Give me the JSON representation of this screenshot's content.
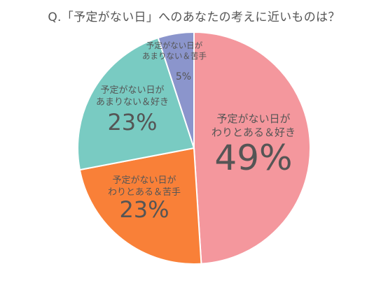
{
  "chart_data": {
    "type": "pie",
    "title": "Q.「予定がない日」へのあなたの考えに近いものは？",
    "slices": [
      {
        "label_lines": [
          "予定がない日が",
          "わりとある＆好き"
        ],
        "value": 49,
        "value_label": "49%",
        "color": "#F4979D"
      },
      {
        "label_lines": [
          "予定がない日が",
          "わりとある＆苦手"
        ],
        "value": 23,
        "value_label": "23%",
        "color": "#F98038"
      },
      {
        "label_lines": [
          "予定がない日が",
          "あまりない＆好き"
        ],
        "value": 23,
        "value_label": "23%",
        "color": "#79CBC2"
      },
      {
        "label_lines": [
          "予定がない日が",
          "あまりない＆苦手"
        ],
        "value": 5,
        "value_label": "5%",
        "color": "#8B95CC"
      }
    ]
  }
}
